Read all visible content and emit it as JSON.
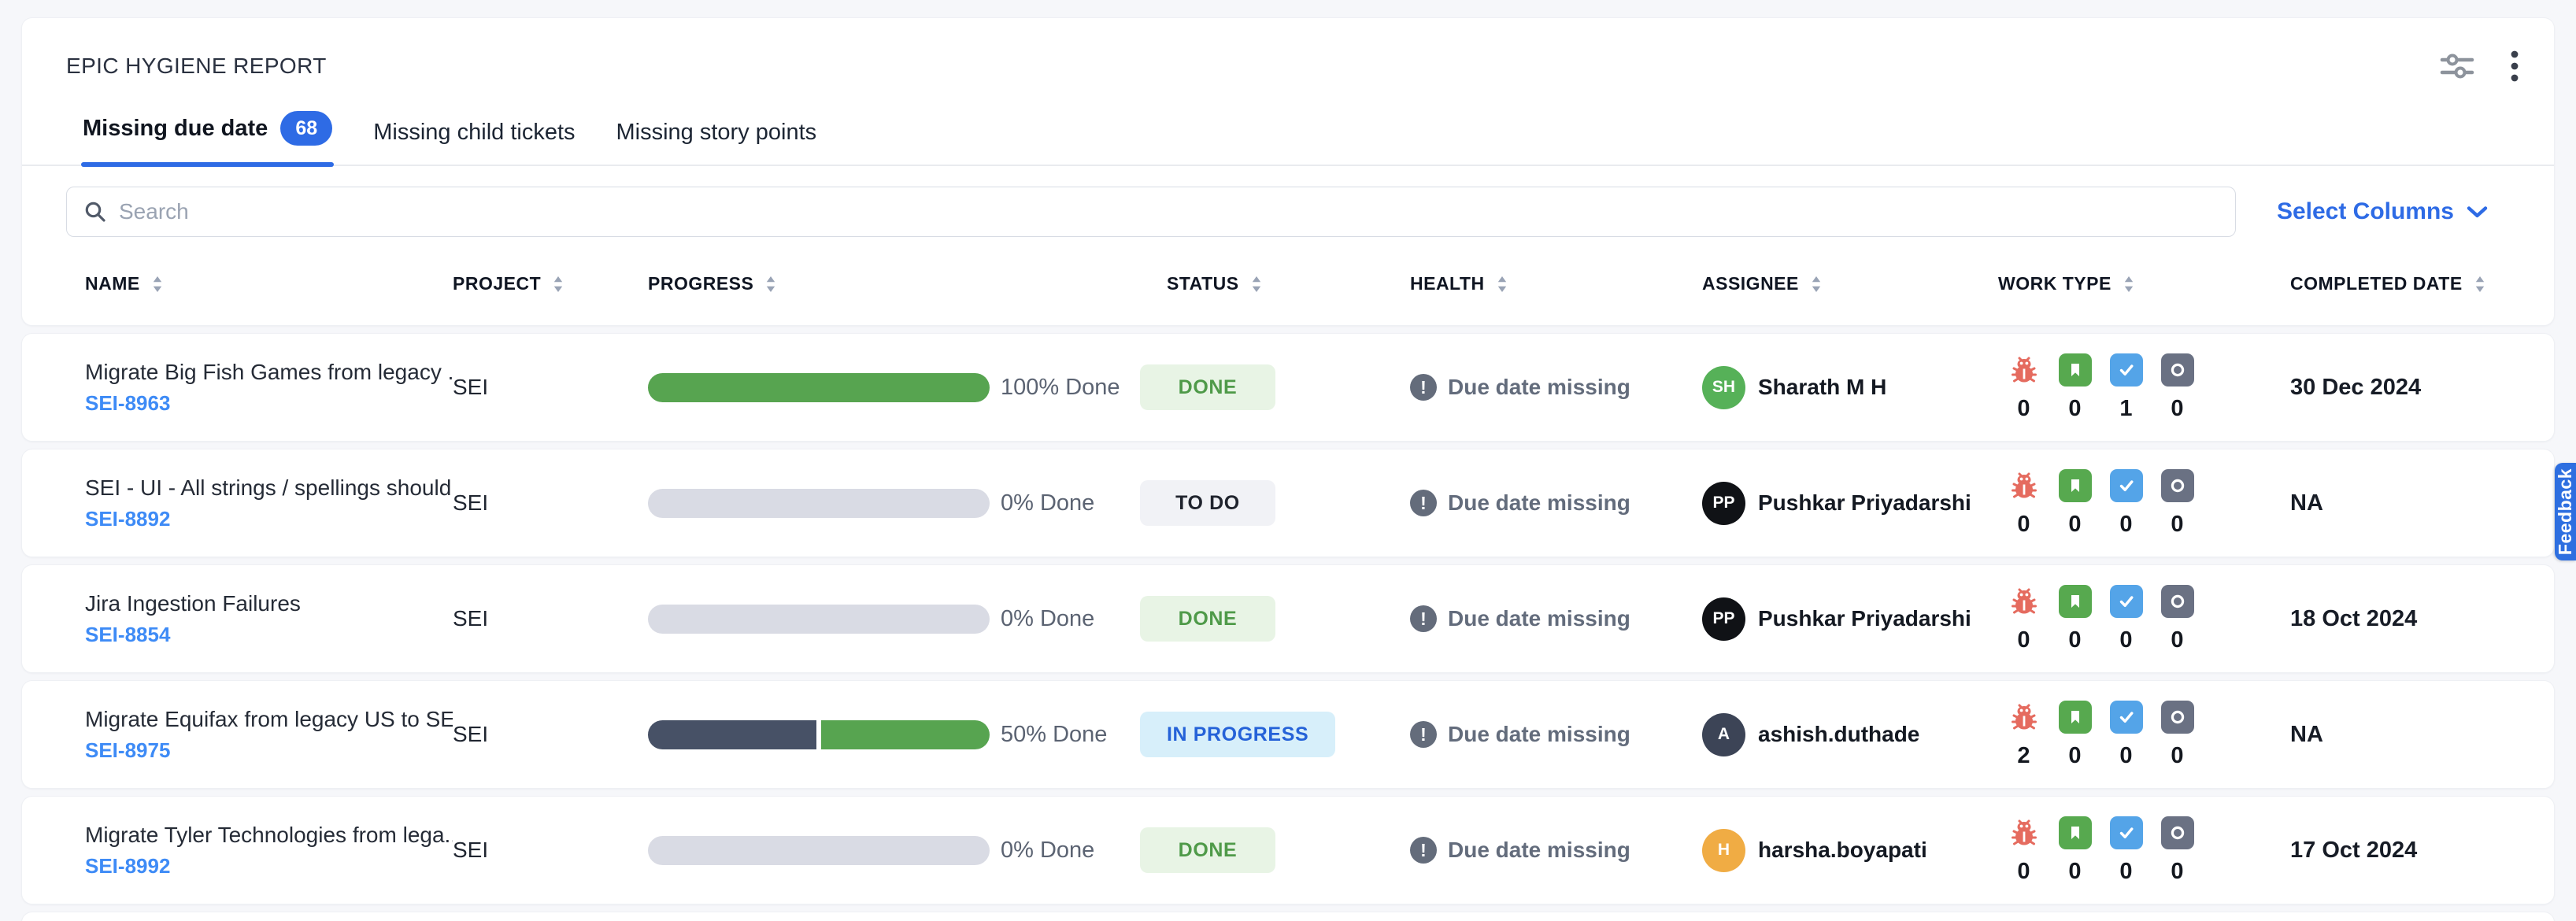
{
  "report": {
    "title": "EPIC HYGIENE REPORT",
    "tabs": [
      {
        "label": "Missing due date",
        "count": "68",
        "active": true
      },
      {
        "label": "Missing child tickets",
        "active": false
      },
      {
        "label": "Missing story points",
        "active": false
      }
    ],
    "search": {
      "placeholder": "Search"
    },
    "select_columns_label": "Select Columns",
    "feedback_tab_label": "Feedback"
  },
  "colors": {
    "accent_blue": "#2e6be5",
    "link_blue": "#3e8bf6",
    "progress_green": "#57a450",
    "progress_slate": "#475166",
    "progress_track": "#d9dbe4",
    "done_bg": "#e8f4e5",
    "done_text": "#4f9a49",
    "todo_bg": "#f1f2f6",
    "todo_text": "#20242e",
    "inprogress_bg": "#d7effa",
    "inprogress_text": "#2562d8",
    "bug_red": "#e56b5f",
    "story_green": "#57a94f",
    "task_blue": "#54a4e8",
    "other_slate": "#6a7183"
  },
  "table": {
    "columns": [
      "NAME",
      "PROJECT",
      "PROGRESS",
      "STATUS",
      "HEALTH",
      "ASSIGNEE",
      "WORK TYPE",
      "COMPLETED DATE"
    ],
    "work_types": [
      "bug",
      "story",
      "task",
      "other"
    ],
    "rows": [
      {
        "name": "Migrate Big Fish Games from legacy ...",
        "key": "SEI-8963",
        "project": "SEI",
        "progress": {
          "label": "100% Done",
          "segments": [
            {
              "color": "#57a450",
              "pct": 100
            }
          ]
        },
        "status": {
          "label": "DONE",
          "variant": "done"
        },
        "health": "Due date missing",
        "assignee": {
          "initials": "SH",
          "name": "Sharath M H",
          "color": "#56b158"
        },
        "counts": [
          "0",
          "0",
          "1",
          "0"
        ],
        "completed": "30 Dec 2024"
      },
      {
        "name": "SEI - UI - All strings / spellings should...",
        "key": "SEI-8892",
        "project": "SEI",
        "progress": {
          "label": "0% Done",
          "segments": []
        },
        "status": {
          "label": "TO DO",
          "variant": "todo"
        },
        "health": "Due date missing",
        "assignee": {
          "initials": "PP",
          "name": "Pushkar Priyadarshi",
          "color": "#101216"
        },
        "counts": [
          "0",
          "0",
          "0",
          "0"
        ],
        "completed": "NA"
      },
      {
        "name": "Jira Ingestion Failures",
        "key": "SEI-8854",
        "project": "SEI",
        "progress": {
          "label": "0% Done",
          "segments": []
        },
        "status": {
          "label": "DONE",
          "variant": "done"
        },
        "health": "Due date missing",
        "assignee": {
          "initials": "PP",
          "name": "Pushkar Priyadarshi",
          "color": "#101216"
        },
        "counts": [
          "0",
          "0",
          "0",
          "0"
        ],
        "completed": "18 Oct 2024"
      },
      {
        "name": "Migrate Equifax from legacy US to SE...",
        "key": "SEI-8975",
        "project": "SEI",
        "progress": {
          "label": "50% Done",
          "segments": [
            {
              "color": "#475166",
              "pct": 50
            },
            {
              "color": "#57a450",
              "pct": 50
            }
          ]
        },
        "status": {
          "label": "IN PROGRESS",
          "variant": "inprogress"
        },
        "health": "Due date missing",
        "assignee": {
          "initials": "A",
          "name": "ashish.duthade",
          "color": "#3c4456"
        },
        "counts": [
          "2",
          "0",
          "0",
          "0"
        ],
        "completed": "NA"
      },
      {
        "name": "Migrate Tyler Technologies from lega...",
        "key": "SEI-8992",
        "project": "SEI",
        "progress": {
          "label": "0% Done",
          "segments": []
        },
        "status": {
          "label": "DONE",
          "variant": "done"
        },
        "health": "Due date missing",
        "assignee": {
          "initials": "H",
          "name": "harsha.boyapati",
          "color": "#f0ac44"
        },
        "counts": [
          "0",
          "0",
          "0",
          "0"
        ],
        "completed": "17 Oct 2024"
      }
    ]
  }
}
